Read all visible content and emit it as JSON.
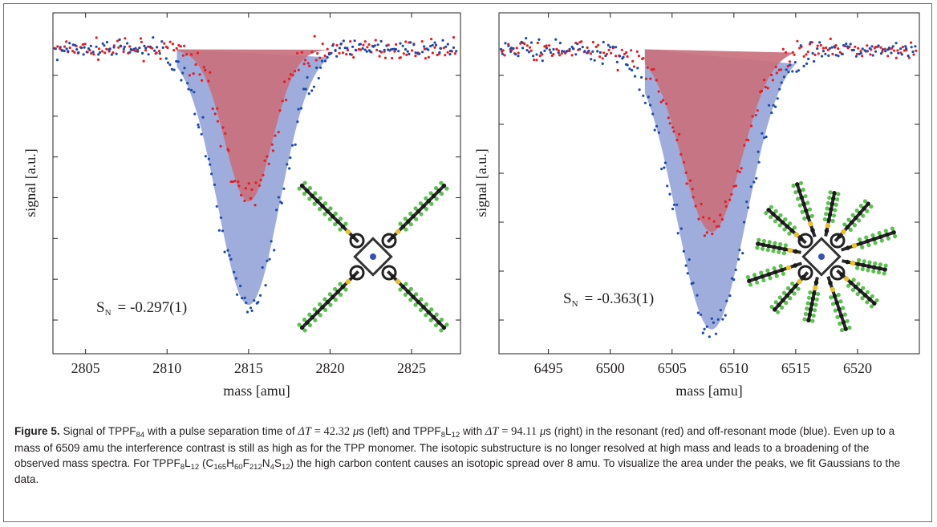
{
  "figure_label": "Figure 5.",
  "caption": {
    "p1": "Signal of TPPF",
    "p1_sub": "84",
    "p2": " with a pulse separation time of ",
    "dt1_lhs": "ΔT",
    "dt1_rhs": "= 42.32",
    "unit_mu": "μ",
    "unit_s": "s (left) and TPPF",
    "p3_sub1": "8",
    "p3_L": "L",
    "p3_sub2": "12",
    "p4": " with ",
    "dt2_rhs": "= 94.11",
    "p5": "s (right) in the resonant (red) and off-resonant mode (blue). Even up to a mass of 6509 amu the interference contrast is still as high as for the TPP monomer. The isotopic substructure is no longer resolved at high mass and leads to a broadening of the observed mass spectra. For TPPF",
    "p6": " (C",
    "f_c": "165",
    "f_h_label": "H",
    "f_h": "60",
    "f_f_label": "F",
    "f_f": "212",
    "f_n_label": "N",
    "f_n": "4",
    "f_s_label": "S",
    "f_s": "12",
    "p7": ") the high carbon content causes an isotopic spread over 8 amu. To visualize the area under the peaks, we fit Gaussians to the data."
  },
  "chart_data": [
    {
      "type": "scatter",
      "xlabel": "mass [amu]",
      "ylabel": "signal [a.u.]",
      "xlim": [
        2803,
        2828
      ],
      "ylim": [
        0,
        1.12
      ],
      "xticks": [
        2805,
        2810,
        2815,
        2820,
        2825
      ],
      "yticks_count": 7,
      "annotation_prefix": "S",
      "annotation_sub": "N",
      "annotation_value": "= -0.297(1)",
      "series": [
        {
          "color": "#e31e24",
          "fit": {
            "baseline": 1.0,
            "center": 2815.0,
            "sigma": 1.45,
            "depth": 0.5,
            "start": 2810.6,
            "end": 2820.0
          }
        },
        {
          "color": "#1f4aa8",
          "fit": {
            "baseline": 1.0,
            "center": 2815.0,
            "sigma": 1.9,
            "depth": 0.84,
            "start": 2810.6,
            "end": 2820.0
          }
        }
      ]
    },
    {
      "type": "scatter",
      "xlabel": "mass [amu]",
      "ylabel": "signal [a.u.]",
      "xlim": [
        6491,
        6525
      ],
      "ylim": [
        0,
        1.12
      ],
      "xticks": [
        6495,
        6500,
        6505,
        6510,
        6515,
        6520
      ],
      "yticks_count": 6,
      "annotation_prefix": "S",
      "annotation_sub": "N",
      "annotation_value": "= -0.363(1)",
      "series": [
        {
          "color": "#e31e24",
          "fit": {
            "baseline": 1.0,
            "center": 6508.2,
            "sigma": 2.4,
            "depth": 0.6,
            "start": 6502.8,
            "end": 6515.0
          }
        },
        {
          "color": "#1f4aa8",
          "fit": {
            "baseline": 1.0,
            "center": 6508.2,
            "sigma": 2.8,
            "depth": 0.92,
            "start": 6502.8,
            "end": 6515.0
          }
        }
      ]
    }
  ]
}
